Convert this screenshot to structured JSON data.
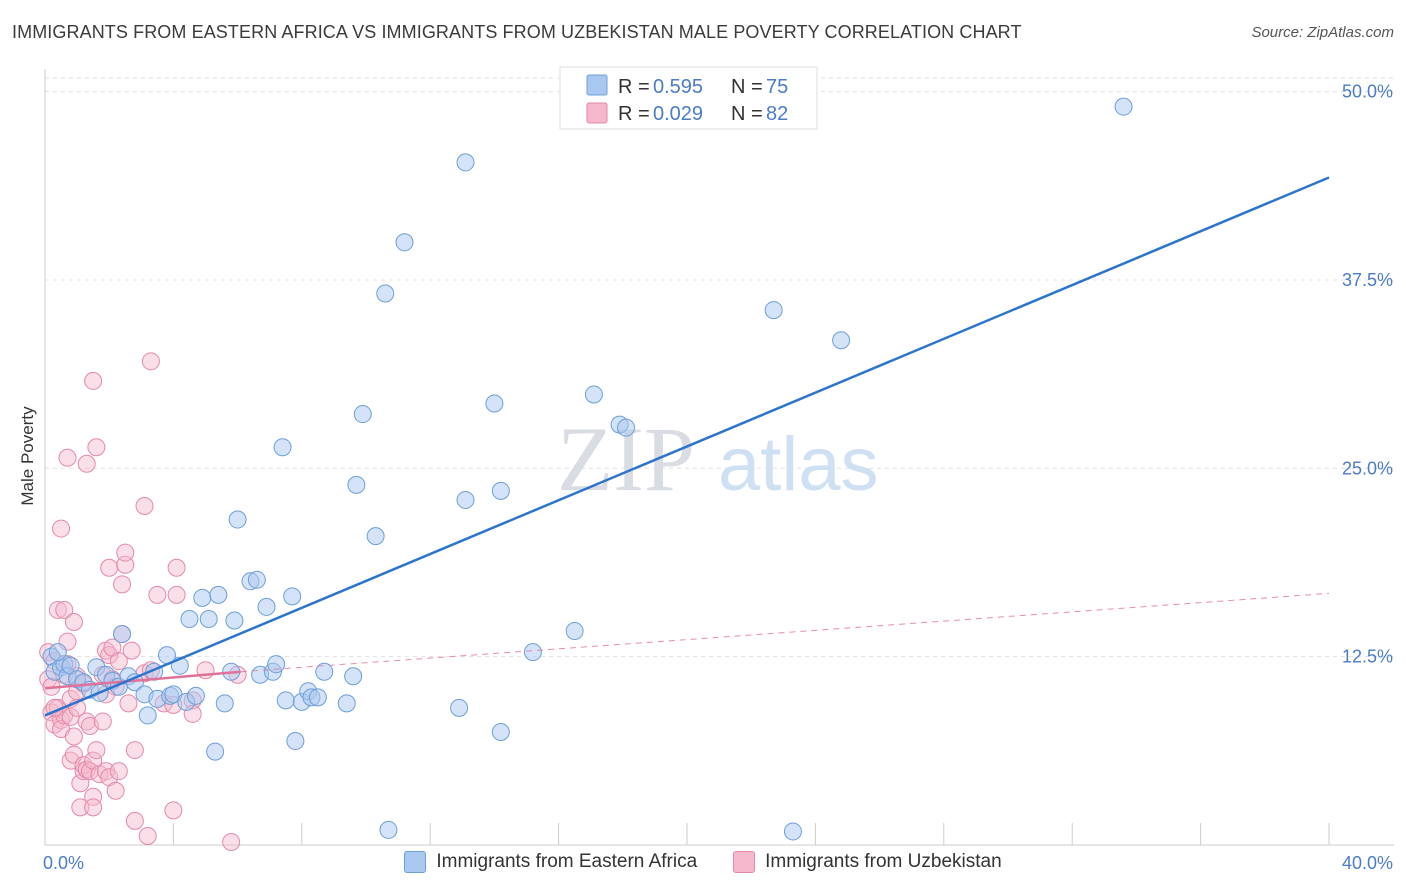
{
  "title": "IMMIGRANTS FROM EASTERN AFRICA VS IMMIGRANTS FROM UZBEKISTAN MALE POVERTY CORRELATION CHART",
  "source": "Source: ZipAtlas.com",
  "watermark": {
    "zip": "ZIP",
    "atlas": "atlas"
  },
  "colors": {
    "blue_fill": "#a9c8ef",
    "blue_stroke": "#6d9fd9",
    "blue_line": "#2d74cc",
    "pink_fill": "#f4b7cb",
    "pink_stroke": "#e38aa8",
    "pink_line": "#e0719a",
    "grid": "#e0e0e0",
    "tick_text": "#4a7cc7"
  },
  "legend": {
    "series1": {
      "r_label": "R = ",
      "r_value": "0.595",
      "n_label": "N = ",
      "n_value": "75"
    },
    "series2": {
      "r_label": "R = ",
      "r_value": "0.029",
      "n_label": "N = ",
      "n_value": "82"
    }
  },
  "chart_data": {
    "type": "scatter",
    "title": "IMMIGRANTS FROM EASTERN AFRICA VS IMMIGRANTS FROM UZBEKISTAN MALE POVERTY CORRELATION CHART",
    "xlabel": "",
    "ylabel": "Male Poverty",
    "xlim": [
      0,
      40
    ],
    "ylim": [
      0,
      51.5
    ],
    "x_tick_labels": [
      "0.0%",
      "40.0%"
    ],
    "y_ticks": [
      12.5,
      25.0,
      37.5,
      50.0
    ],
    "y_tick_labels": [
      "12.5%",
      "25.0%",
      "37.5%",
      "50.0%"
    ],
    "grid": true,
    "legend_position": "top-center",
    "series": [
      {
        "name": "Immigrants from Eastern Africa",
        "color": "blue",
        "R": 0.595,
        "N": 75,
        "trend": {
          "x": [
            0,
            40
          ],
          "y": [
            8.6,
            44.3
          ],
          "style": "solid"
        },
        "points": [
          [
            0.2,
            12.5
          ],
          [
            0.3,
            11.5
          ],
          [
            0.5,
            11.8
          ],
          [
            0.6,
            12.0
          ],
          [
            0.7,
            11.2
          ],
          [
            0.8,
            11.9
          ],
          [
            1.0,
            11.0
          ],
          [
            1.2,
            10.8
          ],
          [
            1.4,
            10.3
          ],
          [
            1.6,
            11.8
          ],
          [
            1.7,
            10.1
          ],
          [
            1.9,
            11.3
          ],
          [
            2.1,
            10.9
          ],
          [
            2.3,
            10.5
          ],
          [
            2.4,
            14.0
          ],
          [
            2.6,
            11.2
          ],
          [
            2.8,
            10.8
          ],
          [
            3.1,
            10.0
          ],
          [
            3.2,
            8.6
          ],
          [
            3.4,
            11.5
          ],
          [
            3.5,
            9.7
          ],
          [
            3.8,
            12.6
          ],
          [
            3.9,
            9.9
          ],
          [
            4.0,
            10.0
          ],
          [
            4.2,
            11.9
          ],
          [
            4.4,
            9.5
          ],
          [
            4.5,
            15.0
          ],
          [
            4.7,
            9.9
          ],
          [
            4.9,
            16.4
          ],
          [
            5.1,
            15.0
          ],
          [
            5.3,
            6.2
          ],
          [
            5.4,
            16.6
          ],
          [
            5.6,
            9.4
          ],
          [
            5.8,
            11.5
          ],
          [
            5.9,
            14.9
          ],
          [
            6.0,
            21.6
          ],
          [
            6.4,
            17.5
          ],
          [
            6.6,
            17.6
          ],
          [
            6.7,
            11.3
          ],
          [
            6.9,
            15.8
          ],
          [
            7.1,
            11.5
          ],
          [
            7.2,
            12.0
          ],
          [
            7.4,
            26.4
          ],
          [
            7.5,
            9.6
          ],
          [
            7.7,
            16.5
          ],
          [
            7.8,
            6.9
          ],
          [
            8.0,
            9.5
          ],
          [
            8.2,
            10.2
          ],
          [
            8.3,
            9.8
          ],
          [
            8.5,
            9.8
          ],
          [
            8.7,
            11.5
          ],
          [
            9.4,
            9.4
          ],
          [
            9.6,
            11.2
          ],
          [
            9.7,
            23.9
          ],
          [
            9.9,
            28.6
          ],
          [
            10.3,
            20.5
          ],
          [
            10.6,
            36.6
          ],
          [
            10.7,
            1.0
          ],
          [
            11.2,
            40.0
          ],
          [
            12.9,
            9.1
          ],
          [
            13.1,
            22.9
          ],
          [
            13.1,
            45.3
          ],
          [
            14.0,
            29.3
          ],
          [
            14.2,
            23.5
          ],
          [
            14.2,
            7.5
          ],
          [
            15.2,
            12.8
          ],
          [
            16.5,
            14.2
          ],
          [
            17.1,
            29.9
          ],
          [
            17.9,
            27.9
          ],
          [
            18.1,
            27.7
          ],
          [
            22.7,
            35.5
          ],
          [
            23.3,
            0.9
          ],
          [
            24.8,
            33.5
          ],
          [
            33.6,
            49.0
          ],
          [
            0.4,
            12.8
          ]
        ]
      },
      {
        "name": "Immigrants from Uzbekistan",
        "color": "pink",
        "R": 0.029,
        "N": 82,
        "trend": {
          "x": [
            0,
            6.1
          ],
          "y": [
            10.4,
            11.5
          ],
          "style": "solid"
        },
        "trend_extended": {
          "x": [
            6.1,
            40
          ],
          "y": [
            11.5,
            16.7
          ],
          "style": "dashed"
        },
        "points": [
          [
            0.1,
            12.8
          ],
          [
            0.1,
            11.0
          ],
          [
            0.2,
            8.8
          ],
          [
            0.2,
            10.5
          ],
          [
            0.3,
            8.0
          ],
          [
            0.3,
            12.2
          ],
          [
            0.4,
            9.1
          ],
          [
            0.4,
            15.6
          ],
          [
            0.5,
            8.3
          ],
          [
            0.5,
            7.7
          ],
          [
            0.5,
            21.0
          ],
          [
            0.6,
            8.6
          ],
          [
            0.6,
            11.3
          ],
          [
            0.6,
            15.6
          ],
          [
            0.7,
            13.5
          ],
          [
            0.7,
            12.0
          ],
          [
            0.7,
            25.7
          ],
          [
            0.8,
            9.7
          ],
          [
            0.8,
            5.6
          ],
          [
            0.8,
            8.5
          ],
          [
            0.9,
            6.0
          ],
          [
            0.9,
            7.2
          ],
          [
            0.9,
            14.8
          ],
          [
            1.0,
            11.2
          ],
          [
            1.0,
            9.1
          ],
          [
            1.0,
            10.2
          ],
          [
            1.1,
            4.1
          ],
          [
            1.1,
            2.5
          ],
          [
            1.2,
            4.9
          ],
          [
            1.2,
            5.3
          ],
          [
            1.2,
            10.7
          ],
          [
            1.3,
            8.2
          ],
          [
            1.3,
            5.0
          ],
          [
            1.3,
            25.3
          ],
          [
            1.4,
            4.9
          ],
          [
            1.4,
            7.9
          ],
          [
            1.5,
            5.6
          ],
          [
            1.5,
            3.2
          ],
          [
            1.5,
            2.5
          ],
          [
            1.5,
            30.8
          ],
          [
            1.6,
            6.3
          ],
          [
            1.6,
            26.4
          ],
          [
            1.7,
            4.7
          ],
          [
            1.8,
            11.3
          ],
          [
            1.8,
            8.2
          ],
          [
            1.9,
            12.9
          ],
          [
            1.9,
            4.9
          ],
          [
            2.0,
            18.4
          ],
          [
            2.0,
            12.6
          ],
          [
            2.0,
            4.5
          ],
          [
            2.1,
            13.1
          ],
          [
            2.1,
            11.0
          ],
          [
            2.2,
            3.6
          ],
          [
            2.2,
            10.5
          ],
          [
            2.3,
            12.2
          ],
          [
            2.3,
            4.9
          ],
          [
            2.4,
            14.0
          ],
          [
            2.4,
            17.3
          ],
          [
            2.5,
            18.6
          ],
          [
            2.5,
            19.4
          ],
          [
            2.6,
            9.4
          ],
          [
            2.7,
            12.9
          ],
          [
            2.8,
            6.3
          ],
          [
            2.8,
            1.6
          ],
          [
            3.1,
            11.4
          ],
          [
            3.1,
            22.5
          ],
          [
            3.2,
            0.6
          ],
          [
            3.3,
            11.6
          ],
          [
            3.3,
            32.1
          ],
          [
            3.5,
            16.6
          ],
          [
            3.7,
            9.4
          ],
          [
            4.0,
            9.3
          ],
          [
            4.0,
            2.3
          ],
          [
            4.1,
            16.6
          ],
          [
            4.1,
            18.4
          ],
          [
            4.6,
            9.6
          ],
          [
            4.6,
            8.7
          ],
          [
            5.0,
            11.6
          ],
          [
            5.8,
            0.2
          ],
          [
            6.0,
            11.3
          ],
          [
            0.3,
            9.1
          ],
          [
            1.9,
            10.0
          ]
        ]
      }
    ]
  },
  "bottom_legend": {
    "series1_label": "Immigrants from Eastern Africa",
    "series2_label": "Immigrants from Uzbekistan"
  }
}
